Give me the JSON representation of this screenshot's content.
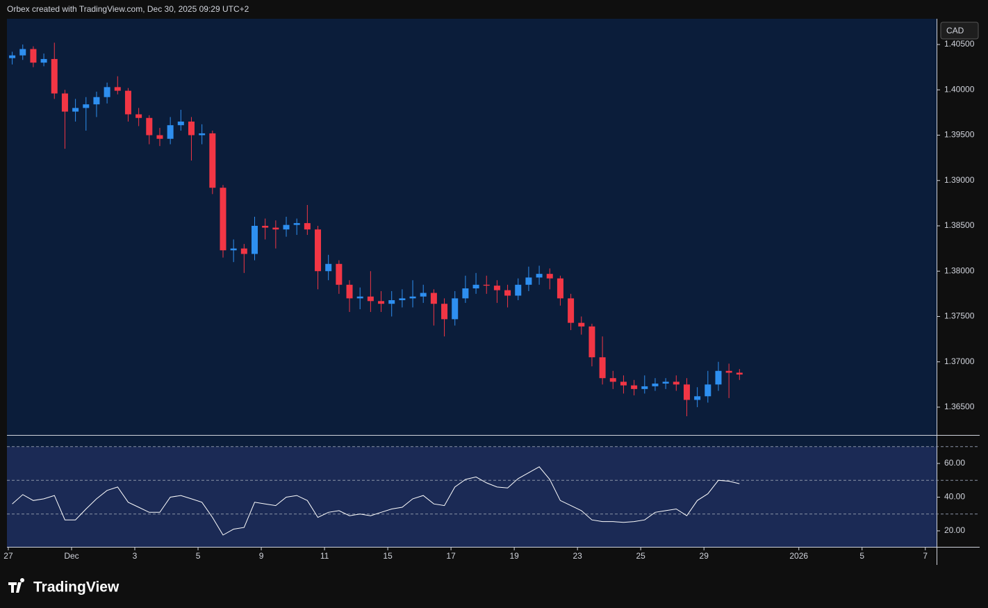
{
  "header": {
    "text": "Orbex created with TradingView.com, Dec 30, 2025 09:29 UTC+2"
  },
  "logo": {
    "text": "TradingView"
  },
  "currency": "CAD",
  "chart_data": [
    {
      "type": "candlestick",
      "up_color": "#2e8ff0",
      "down_color": "#f23645",
      "background": "#0b1d3a",
      "open": [
        1.4035,
        1.4038,
        1.4045,
        1.403,
        1.4034,
        1.3996,
        1.3976,
        1.398,
        1.3984,
        1.3992,
        1.4003,
        1.3999,
        1.3973,
        1.3969,
        1.395,
        1.3946,
        1.3961,
        1.3965,
        1.395,
        1.3952,
        1.3892,
        1.3823,
        1.3825,
        1.3819,
        1.385,
        1.3848,
        1.3846,
        1.3851,
        1.3853,
        1.3846,
        1.38,
        1.3808,
        1.3785,
        1.377,
        1.3772,
        1.3767,
        1.3764,
        1.3768,
        1.377,
        1.3772,
        1.3776,
        1.3764,
        1.3747,
        1.377,
        1.3781,
        1.3785,
        1.3784,
        1.3779,
        1.3773,
        1.3785,
        1.3793,
        1.3797,
        1.3792,
        1.377,
        1.3743,
        1.3739,
        1.3705,
        1.3682,
        1.3678,
        1.3674,
        1.367,
        1.3673,
        1.3676,
        1.3678,
        1.3675,
        1.3658,
        1.3662,
        1.3675,
        1.369,
        1.3688
      ],
      "high": [
        1.4042,
        1.405,
        1.4048,
        1.404,
        1.4052,
        1.4,
        1.399,
        1.3992,
        1.3998,
        1.4008,
        1.4015,
        1.4002,
        1.398,
        1.3972,
        1.3958,
        1.397,
        1.3978,
        1.397,
        1.3962,
        1.3955,
        1.3895,
        1.3835,
        1.383,
        1.386,
        1.3858,
        1.3856,
        1.386,
        1.3858,
        1.3873,
        1.385,
        1.3818,
        1.3812,
        1.379,
        1.3782,
        1.38,
        1.3778,
        1.3778,
        1.378,
        1.379,
        1.3785,
        1.378,
        1.377,
        1.3778,
        1.3795,
        1.3798,
        1.3795,
        1.379,
        1.3785,
        1.3792,
        1.3805,
        1.3806,
        1.3803,
        1.3795,
        1.3775,
        1.375,
        1.3742,
        1.3728,
        1.369,
        1.3685,
        1.368,
        1.3685,
        1.3682,
        1.3682,
        1.3685,
        1.3682,
        1.3672,
        1.369,
        1.37,
        1.3698,
        1.3692
      ],
      "low": [
        1.4028,
        1.4033,
        1.4025,
        1.4026,
        1.399,
        1.3935,
        1.3965,
        1.3955,
        1.397,
        1.3985,
        1.3995,
        1.3965,
        1.396,
        1.394,
        1.3938,
        1.394,
        1.3955,
        1.3922,
        1.394,
        1.3885,
        1.3815,
        1.381,
        1.3798,
        1.3812,
        1.3835,
        1.3825,
        1.3838,
        1.384,
        1.384,
        1.378,
        1.379,
        1.3775,
        1.3755,
        1.3758,
        1.3755,
        1.3755,
        1.375,
        1.376,
        1.376,
        1.3765,
        1.374,
        1.3728,
        1.374,
        1.3765,
        1.3775,
        1.3775,
        1.3765,
        1.376,
        1.3768,
        1.3778,
        1.3785,
        1.378,
        1.3762,
        1.3735,
        1.373,
        1.3695,
        1.3675,
        1.367,
        1.3665,
        1.3663,
        1.3665,
        1.3668,
        1.367,
        1.3668,
        1.364,
        1.365,
        1.3655,
        1.3668,
        1.366,
        1.368
      ],
      "close": [
        1.4038,
        1.4045,
        1.403,
        1.4034,
        1.3996,
        1.3976,
        1.398,
        1.3984,
        1.3992,
        1.4003,
        1.3999,
        1.3973,
        1.3969,
        1.395,
        1.3946,
        1.3961,
        1.3965,
        1.395,
        1.3952,
        1.3892,
        1.3823,
        1.3825,
        1.3819,
        1.385,
        1.3848,
        1.3846,
        1.3851,
        1.3853,
        1.3846,
        1.38,
        1.3808,
        1.3785,
        1.377,
        1.3772,
        1.3767,
        1.3764,
        1.3768,
        1.377,
        1.3772,
        1.3776,
        1.3764,
        1.3747,
        1.377,
        1.3781,
        1.3785,
        1.3784,
        1.3779,
        1.3773,
        1.3785,
        1.3793,
        1.3797,
        1.3792,
        1.377,
        1.3743,
        1.3739,
        1.3705,
        1.3682,
        1.3678,
        1.3674,
        1.367,
        1.3673,
        1.3676,
        1.3678,
        1.3675,
        1.3658,
        1.3662,
        1.3675,
        1.369,
        1.3688,
        1.3686
      ],
      "ylim": [
        1.36193,
        1.40784
      ],
      "yticks": [
        {
          "value": 1.365,
          "label": "1.36500"
        },
        {
          "value": 1.37,
          "label": "1.37000"
        },
        {
          "value": 1.375,
          "label": "1.37500"
        },
        {
          "value": 1.38,
          "label": "1.38000"
        },
        {
          "value": 1.385,
          "label": "1.38500"
        },
        {
          "value": 1.39,
          "label": "1.39000"
        },
        {
          "value": 1.395,
          "label": "1.39500"
        },
        {
          "value": 1.4,
          "label": "1.40000"
        },
        {
          "value": 1.405,
          "label": "1.40500"
        }
      ],
      "xlim": [
        -0.5,
        87.7
      ],
      "xticks": [
        {
          "value": -0.37,
          "label": "27"
        },
        {
          "value": 5.63,
          "label": "Dec"
        },
        {
          "value": 11.63,
          "label": "3"
        },
        {
          "value": 17.63,
          "label": "5"
        },
        {
          "value": 23.63,
          "label": "9"
        },
        {
          "value": 29.63,
          "label": "11"
        },
        {
          "value": 35.63,
          "label": "15"
        },
        {
          "value": 41.63,
          "label": "17"
        },
        {
          "value": 47.63,
          "label": "19"
        },
        {
          "value": 53.63,
          "label": "23"
        },
        {
          "value": 59.63,
          "label": "25"
        },
        {
          "value": 65.63,
          "label": "29"
        },
        {
          "value": 74.63,
          "label": "2026"
        },
        {
          "value": 80.63,
          "label": "5"
        },
        {
          "value": 86.63,
          "label": "7"
        }
      ]
    },
    {
      "type": "line",
      "color": "#ffffff",
      "background": "#1b2a55",
      "values": [
        36,
        41.5,
        38,
        39,
        41,
        26.5,
        26.5,
        33,
        39,
        44,
        46,
        37,
        34,
        31,
        31,
        40,
        41,
        39,
        37,
        28,
        17.5,
        21,
        22,
        37,
        36,
        35,
        40,
        41,
        38,
        28,
        31,
        32,
        29,
        30,
        29,
        31,
        33,
        34,
        39,
        41,
        36,
        35,
        46,
        50.5,
        52,
        48.5,
        46,
        45.5,
        51,
        54.5,
        58,
        50.5,
        38,
        35,
        32,
        26.5,
        25.5,
        25.5,
        25,
        25.5,
        26.5,
        31,
        32,
        33,
        29,
        38,
        42,
        50,
        49.5,
        48
      ],
      "levels": [
        70,
        50,
        30
      ],
      "ylim": [
        10.5,
        76.5
      ],
      "yticks": [
        {
          "value": 20,
          "label": "20.00"
        },
        {
          "value": 40,
          "label": "40.00"
        },
        {
          "value": 60,
          "label": "60.00"
        }
      ]
    }
  ]
}
